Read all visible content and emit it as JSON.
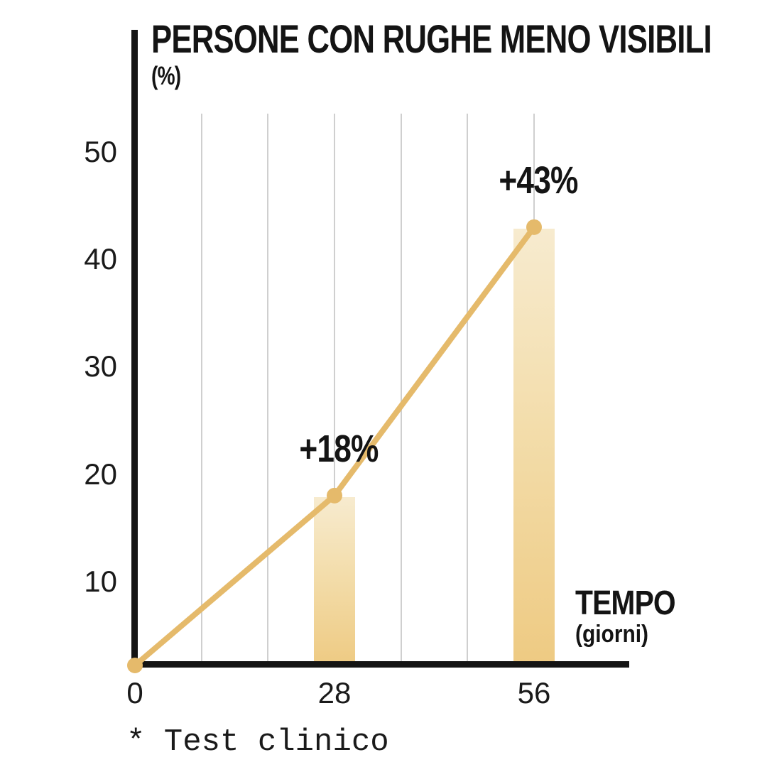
{
  "header": {
    "title": "PERSONE CON RUGHE MENO VISIBILI",
    "unit": "(%)"
  },
  "x_axis": {
    "title": "TEMPO",
    "subtitle": "(giorni)",
    "ticks": [
      "0",
      "28",
      "56"
    ]
  },
  "y_axis": {
    "ticks": [
      "50",
      "40",
      "30",
      "20",
      "10"
    ]
  },
  "footnote": "* Test clinico",
  "colors": {
    "gold_line": "#e5ba6b",
    "bar_gradient_top": "#f7ebcf",
    "bar_gradient_bottom": "#eeca82",
    "gridline": "#cfcfcf",
    "axis": "#141414",
    "text": "#1a1a1a",
    "background": "#ffffff"
  },
  "chart_data": {
    "type": "line",
    "subtype": "line-with-gradient-bars",
    "title": "PERSONE CON RUGHE MENO VISIBILI",
    "ylabel": "(%)",
    "xlabel": "TEMPO (giorni)",
    "x": [
      0,
      28,
      56
    ],
    "values": [
      0,
      18,
      43
    ],
    "bars": [
      {
        "x": 28,
        "value": 18
      },
      {
        "x": 56,
        "value": 43
      }
    ],
    "point_labels": [
      {
        "x": 28,
        "value": 18,
        "text": "+18%"
      },
      {
        "x": 56,
        "value": 43,
        "text": "+43%"
      }
    ],
    "yticks": [
      50,
      40,
      30,
      20,
      10
    ],
    "xticks": [
      0,
      28,
      56
    ],
    "ylim": [
      0,
      53
    ],
    "xlim": [
      0,
      60
    ],
    "grid": "vertical-only",
    "gridline_divisions": 6,
    "legend": "none",
    "footnote": "* Test clinico"
  }
}
